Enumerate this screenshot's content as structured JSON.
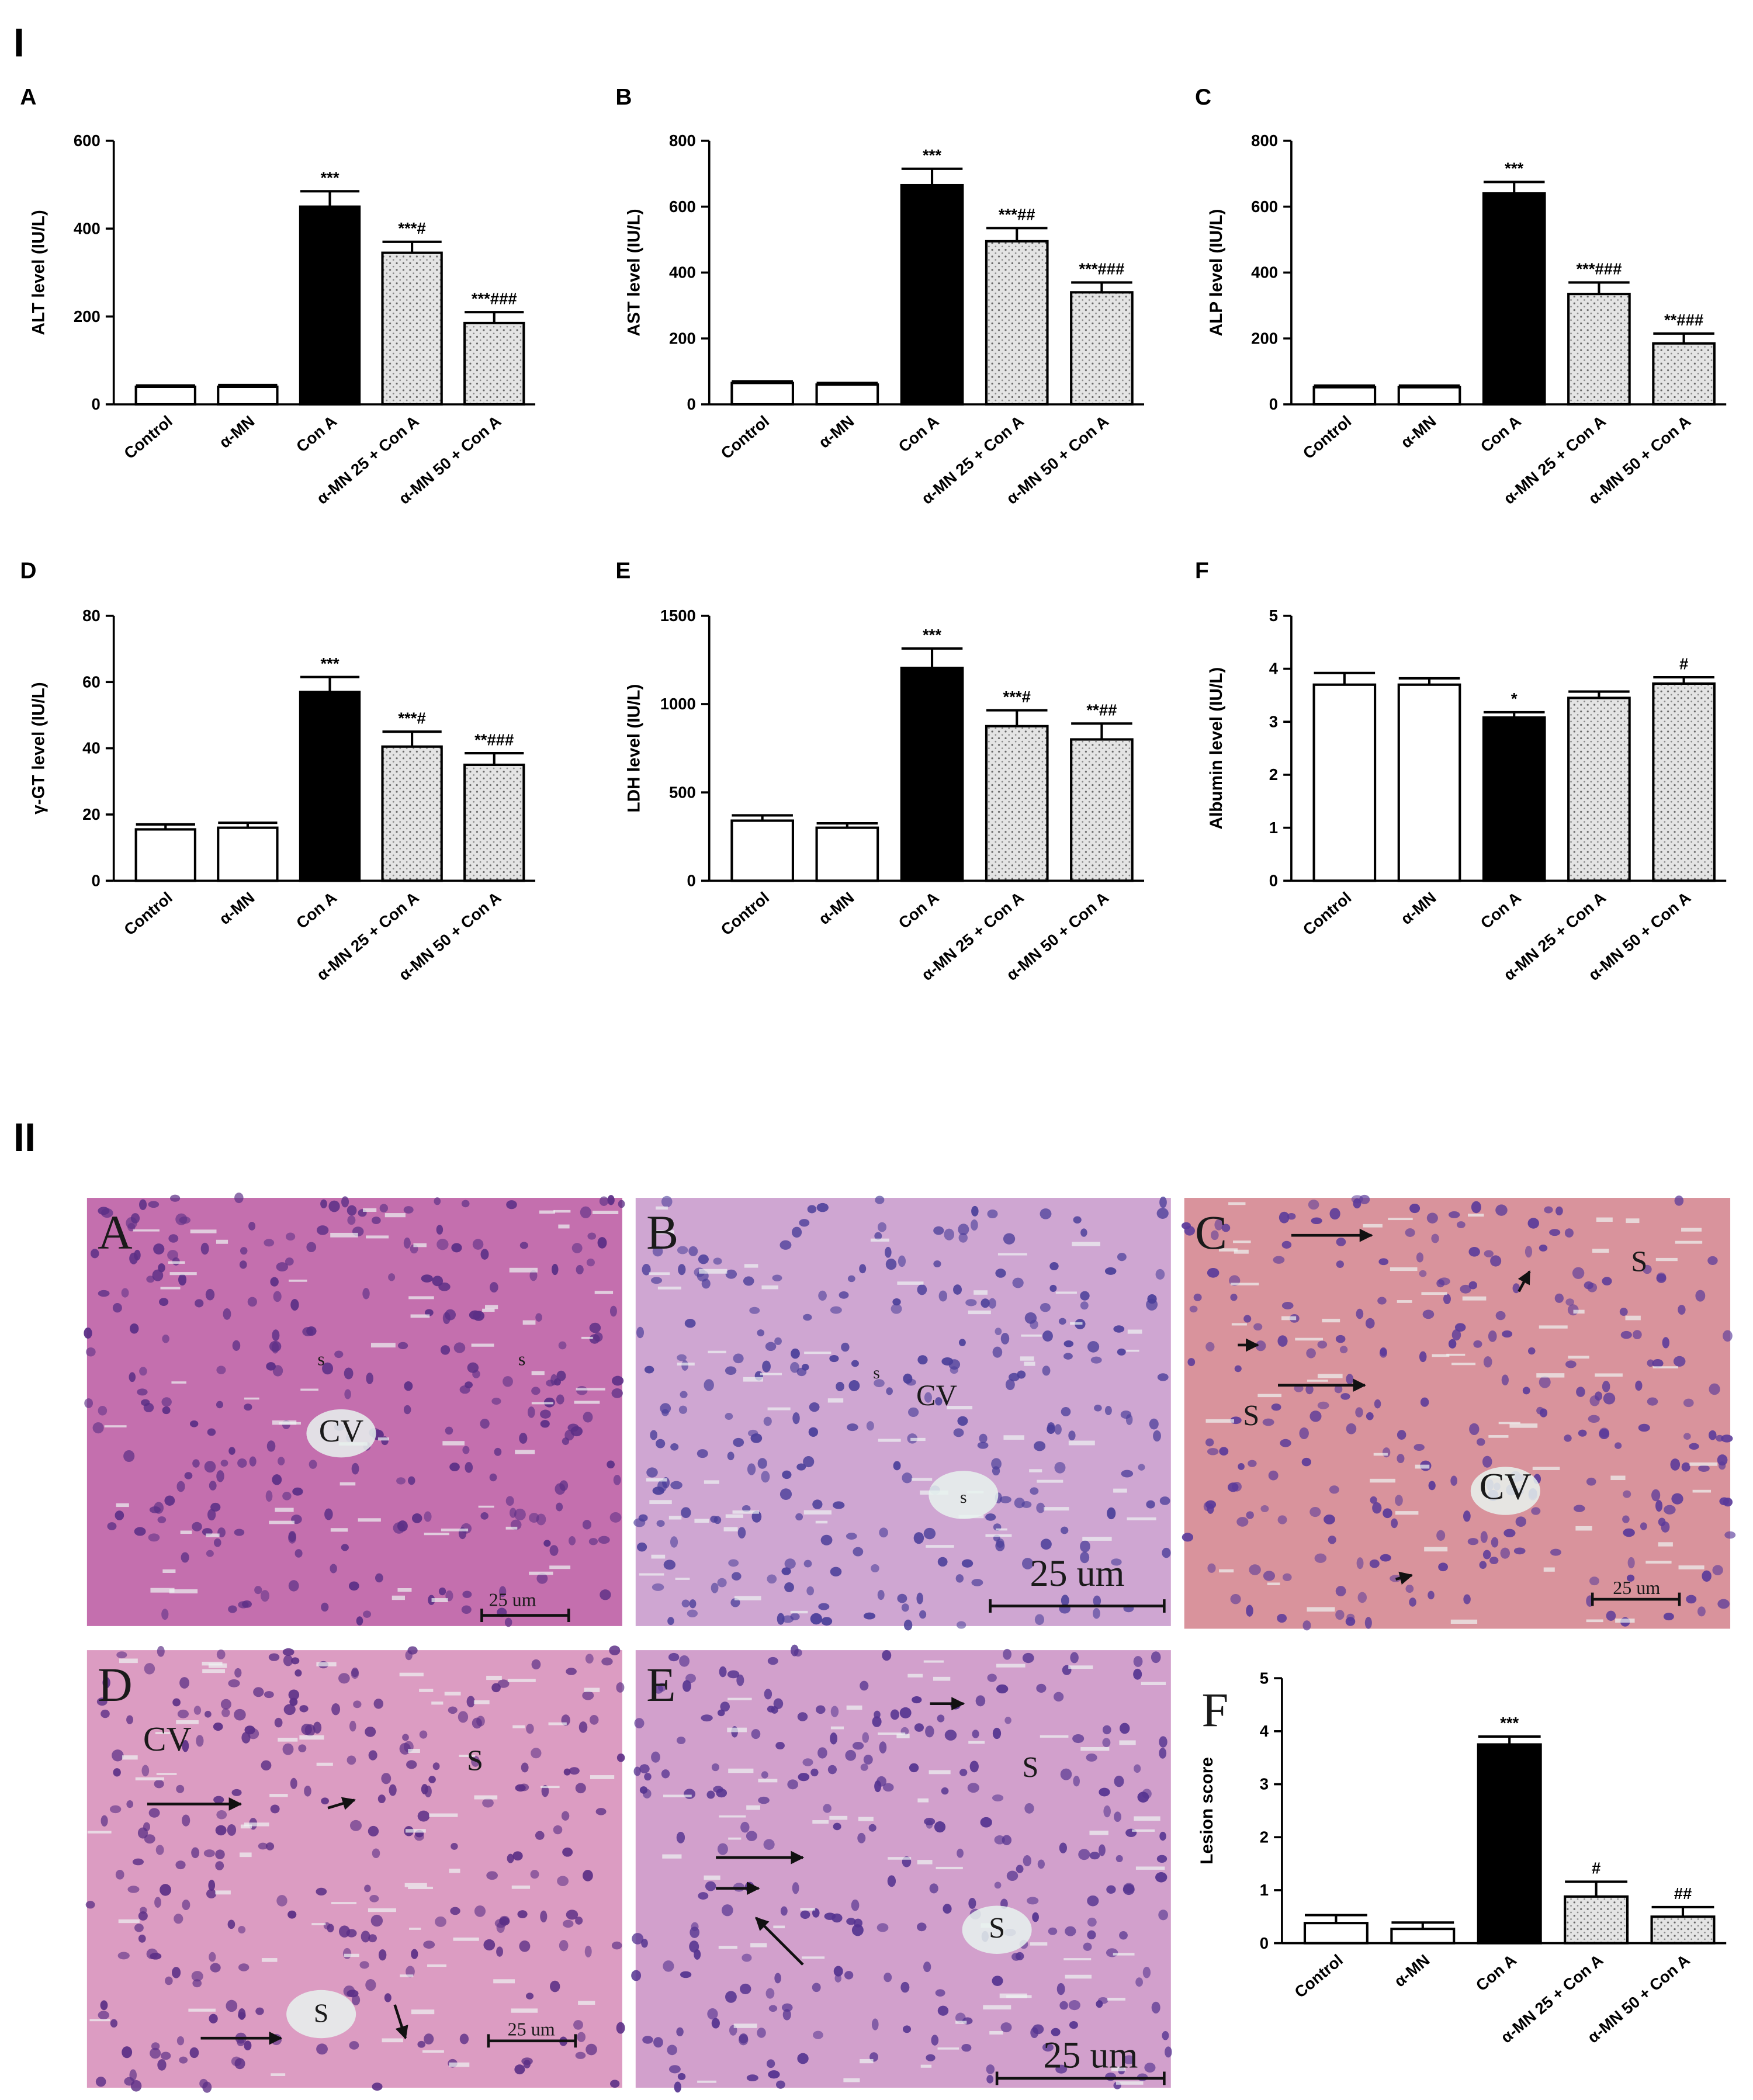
{
  "section_1_label": "I",
  "chart_data": [
    {
      "type": "bar",
      "panel": "A",
      "ylabel": "ALT level (IU/L)",
      "categories": [
        "Control",
        "α-MN",
        "Con A",
        "α-MN 25 + Con A",
        "α-MN 50 + Con A"
      ],
      "values": [
        40,
        40,
        450,
        345,
        185
      ],
      "errors": [
        3,
        4,
        35,
        25,
        25
      ],
      "significance": [
        null,
        null,
        "***",
        "***#",
        "***###"
      ],
      "fills": [
        "white",
        "white",
        "black",
        "dotted",
        "dotted"
      ],
      "ylim": [
        0,
        600
      ],
      "yticks": [
        0,
        200,
        400,
        600
      ]
    },
    {
      "type": "bar",
      "panel": "B",
      "ylabel": "AST level (IU/L)",
      "categories": [
        "Control",
        "α-MN",
        "Con A",
        "α-MN 25 + Con A",
        "α-MN 50 + Con A"
      ],
      "values": [
        65,
        60,
        665,
        495,
        340
      ],
      "errors": [
        5,
        5,
        50,
        40,
        30
      ],
      "significance": [
        null,
        null,
        "***",
        "***##",
        "***###"
      ],
      "fills": [
        "white",
        "white",
        "black",
        "dotted",
        "dotted"
      ],
      "ylim": [
        0,
        800
      ],
      "yticks": [
        0,
        200,
        400,
        600,
        800
      ]
    },
    {
      "type": "bar",
      "panel": "C",
      "ylabel": "ALP level (IU/L)",
      "categories": [
        "Control",
        "α-MN",
        "Con A",
        "α-MN 25 + Con A",
        "α-MN 50 + Con A"
      ],
      "values": [
        52,
        52,
        640,
        335,
        185
      ],
      "errors": [
        5,
        5,
        35,
        35,
        30
      ],
      "significance": [
        null,
        null,
        "***",
        "***###",
        "**###"
      ],
      "fills": [
        "white",
        "white",
        "black",
        "dotted",
        "dotted"
      ],
      "ylim": [
        0,
        800
      ],
      "yticks": [
        0,
        200,
        400,
        600,
        800
      ]
    },
    {
      "type": "bar",
      "panel": "D",
      "ylabel": "γ-GT level (IU/L)",
      "categories": [
        "Control",
        "α-MN",
        "Con A",
        "α-MN 25 + Con A",
        "α-MN 50 + Con A"
      ],
      "values": [
        15.5,
        16,
        57,
        40.5,
        35
      ],
      "errors": [
        1.5,
        1.5,
        4.5,
        4.5,
        3.5
      ],
      "significance": [
        null,
        null,
        "***",
        "***#",
        "**###"
      ],
      "fills": [
        "white",
        "white",
        "black",
        "dotted",
        "dotted"
      ],
      "ylim": [
        0,
        80
      ],
      "yticks": [
        0,
        20,
        40,
        60,
        80
      ]
    },
    {
      "type": "bar",
      "panel": "E",
      "ylabel": "LDH level (IU/L)",
      "categories": [
        "Control",
        "α-MN",
        "Con A",
        "α-MN 25 + Con A",
        "α-MN 50 + Con A"
      ],
      "values": [
        340,
        300,
        1205,
        875,
        800
      ],
      "errors": [
        30,
        25,
        110,
        90,
        90
      ],
      "significance": [
        null,
        null,
        "***",
        "***#",
        "**##"
      ],
      "fills": [
        "white",
        "white",
        "black",
        "dotted",
        "dotted"
      ],
      "ylim": [
        0,
        1500
      ],
      "yticks": [
        0,
        500,
        1000,
        1500
      ]
    },
    {
      "type": "bar",
      "panel": "F",
      "ylabel": "Albumin level (IU/L)",
      "categories": [
        "Control",
        "α-MN",
        "Con A",
        "α-MN 25 + Con A",
        "α-MN 50 + Con A"
      ],
      "values": [
        3.7,
        3.7,
        3.08,
        3.45,
        3.72
      ],
      "errors": [
        0.22,
        0.12,
        0.1,
        0.12,
        0.12
      ],
      "significance": [
        null,
        null,
        "*",
        null,
        "#"
      ],
      "fills": [
        "white",
        "white",
        "black",
        "dotted",
        "dotted"
      ],
      "ylim": [
        0,
        5
      ],
      "yticks": [
        0,
        1,
        2,
        3,
        4,
        5
      ]
    },
    {
      "type": "bar",
      "panel": "F",
      "ylabel": "Lesion score",
      "categories": [
        "Control",
        "α-MN",
        "Con A",
        "α-MN 25 + Con A",
        "α-MN 50 + Con A"
      ],
      "values": [
        0.38,
        0.27,
        3.75,
        0.88,
        0.5
      ],
      "errors": [
        0.15,
        0.12,
        0.15,
        0.28,
        0.18
      ],
      "significance": [
        null,
        null,
        "***",
        "#",
        "##"
      ],
      "fills": [
        "white",
        "white",
        "black",
        "dotted",
        "dotted"
      ],
      "ylim": [
        0,
        5
      ],
      "yticks": [
        0,
        1,
        2,
        3,
        4,
        5
      ]
    }
  ],
  "section_2_label": "II",
  "micrographs": [
    {
      "panel": "A",
      "labels": [
        "s",
        "s",
        "CV"
      ],
      "scale_bar": "25 um"
    },
    {
      "panel": "B",
      "labels": [
        "s",
        "CV",
        "s"
      ],
      "scale_bar": "25 um"
    },
    {
      "panel": "C",
      "labels": [
        "S",
        "S",
        "CV"
      ],
      "scale_bar": "25 um"
    },
    {
      "panel": "D",
      "labels": [
        "CV",
        "S",
        "S"
      ],
      "scale_bar": "25 um"
    },
    {
      "panel": "E",
      "labels": [
        "S",
        "S"
      ],
      "scale_bar": "25 um"
    }
  ]
}
